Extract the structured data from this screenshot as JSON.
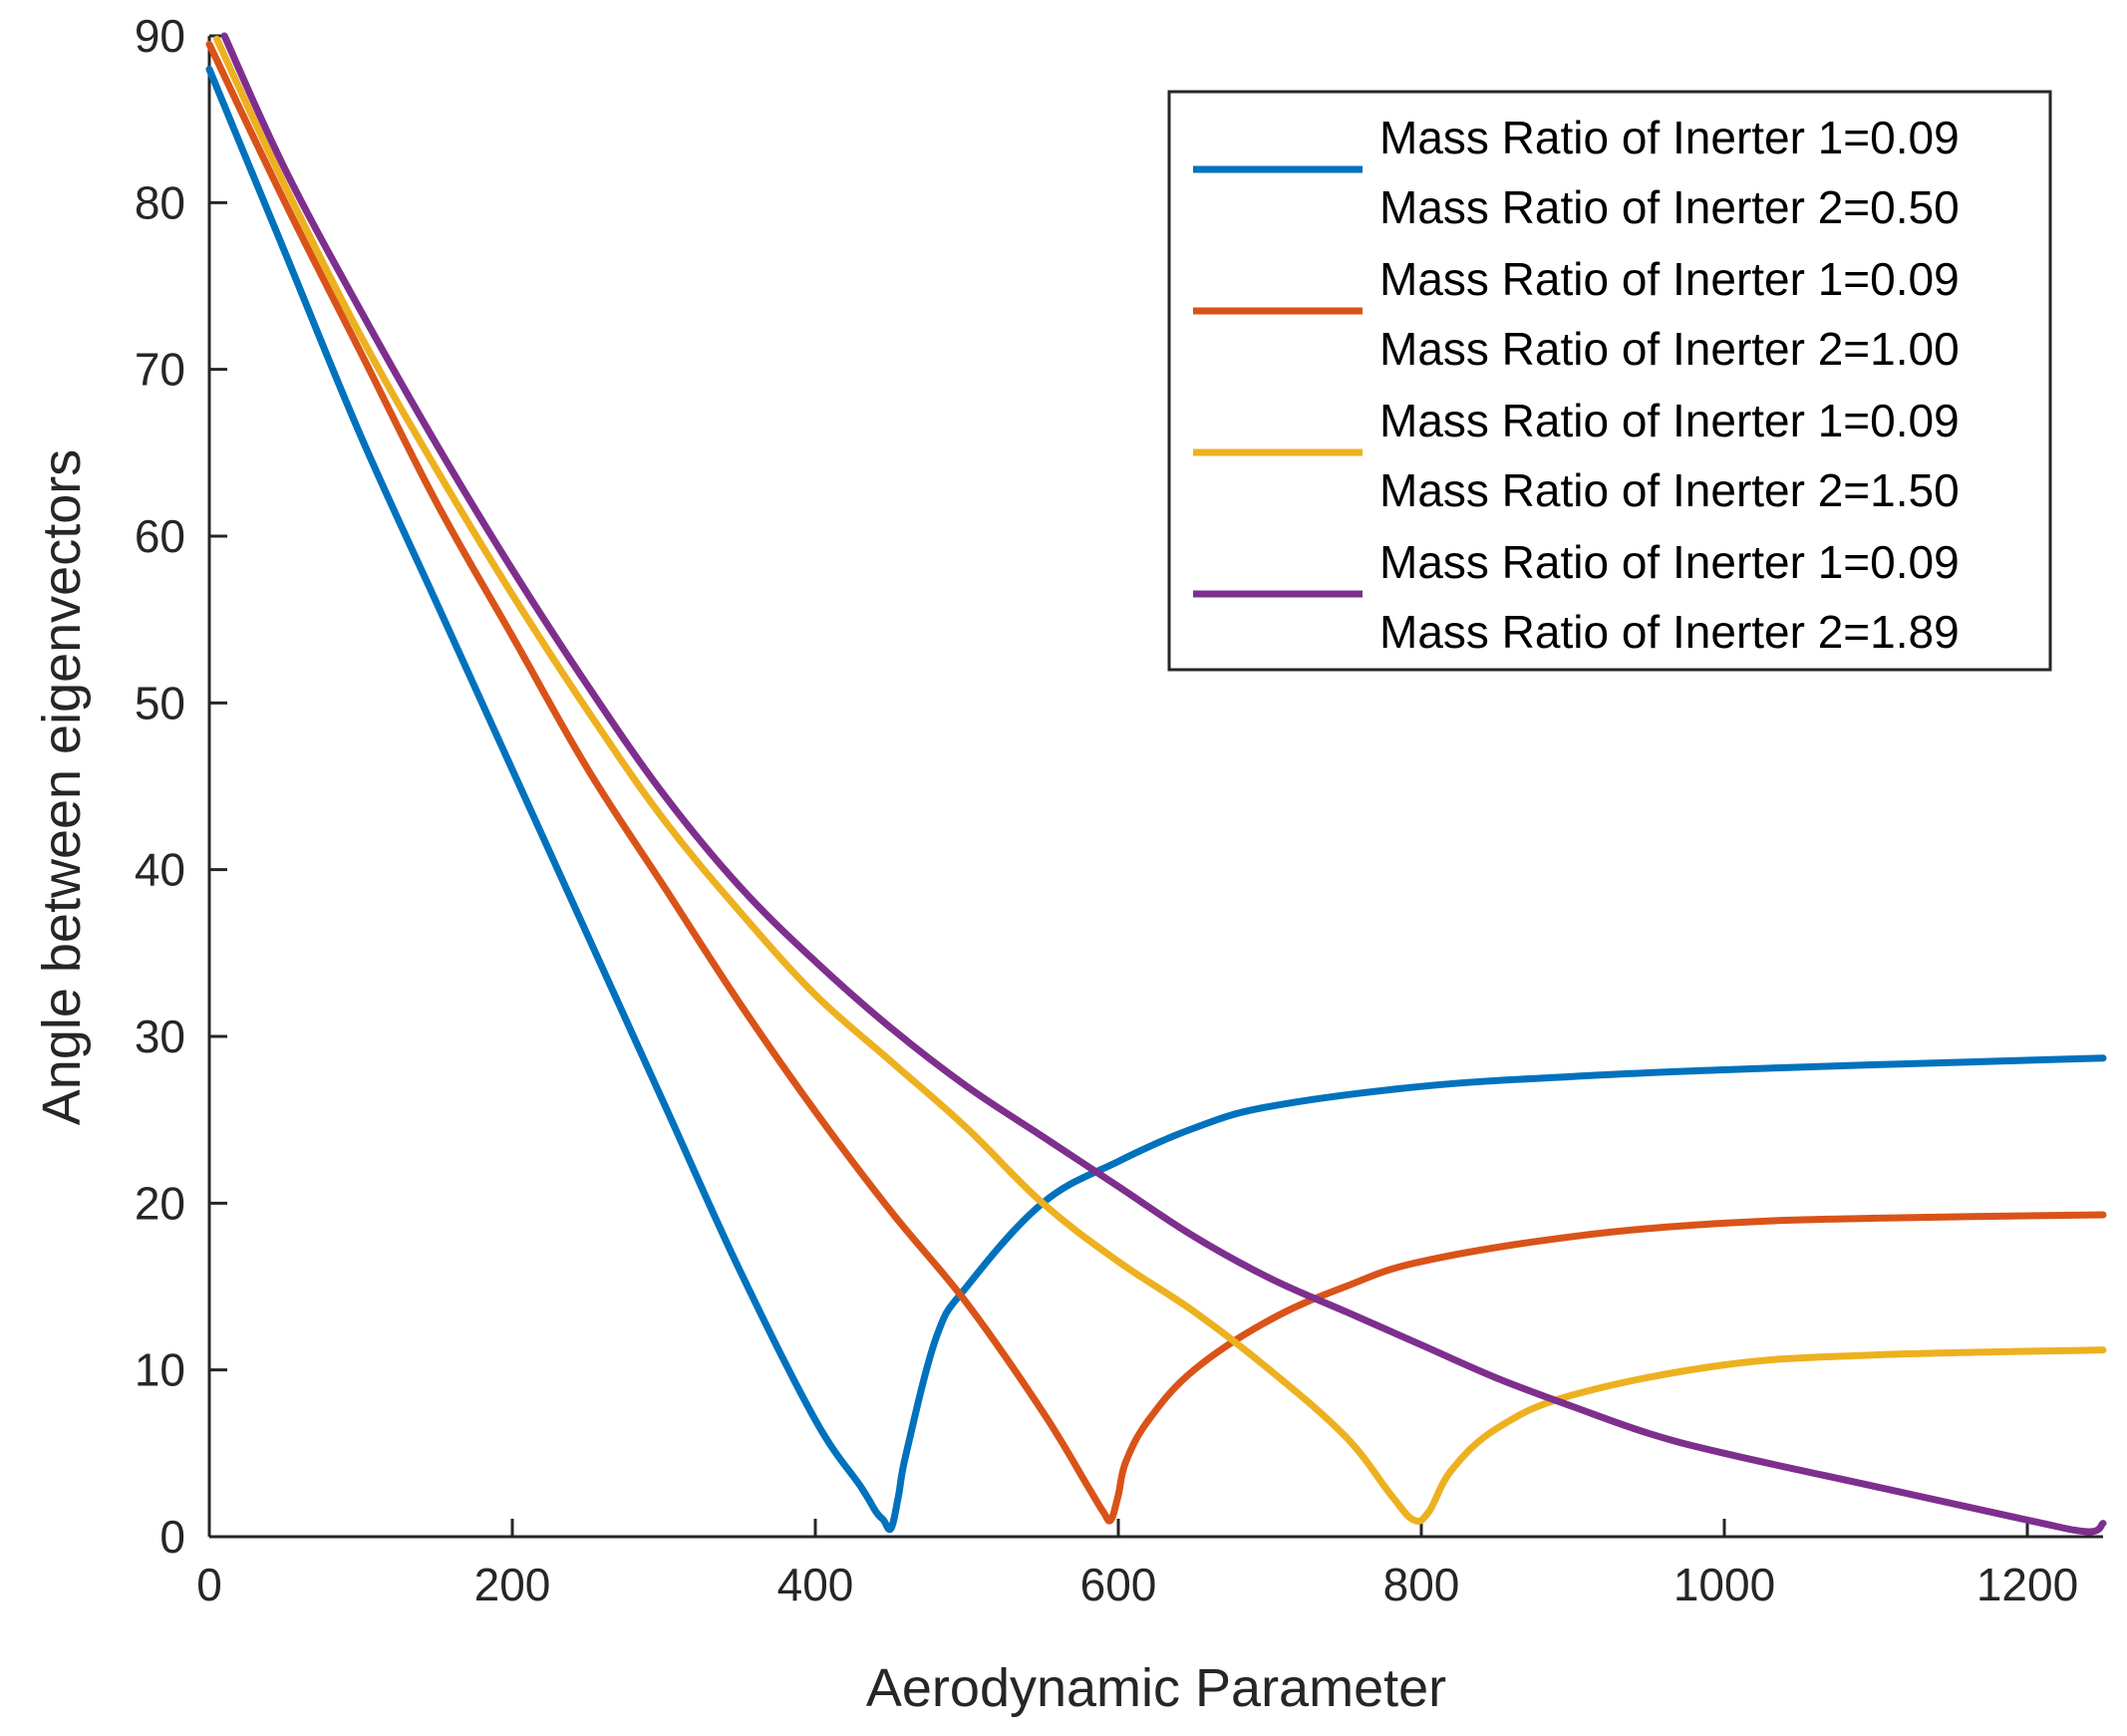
{
  "chart_data": {
    "type": "line",
    "title": "",
    "xlabel": "Aerodynamic Parameter",
    "ylabel": "Angle between eigenvectors",
    "xlim": [
      0,
      1250
    ],
    "ylim": [
      0,
      90
    ],
    "x_ticks": [
      0,
      200,
      400,
      600,
      800,
      1000,
      1200
    ],
    "y_ticks": [
      0,
      10,
      20,
      30,
      40,
      50,
      60,
      70,
      80,
      90
    ],
    "grid": false,
    "legend_position": "top-right",
    "series": [
      {
        "name": "Mass Ratio of Inerter 1=0.09 / Mass Ratio of Inerter 2=0.50",
        "legend_line1": "Mass Ratio of Inerter 1=0.09",
        "legend_line2": "Mass Ratio of Inerter 2=0.50",
        "color": "#0072BD",
        "x": [
          0,
          50,
          100,
          150,
          200,
          250,
          300,
          350,
          400,
          430,
          440,
          445,
          450,
          455,
          460,
          480,
          500,
          550,
          600,
          650,
          700,
          800,
          900,
          1000,
          1100,
          1250
        ],
        "y": [
          88,
          77,
          66,
          56,
          46,
          36,
          26,
          16,
          7,
          3,
          1.5,
          1,
          0.5,
          2.5,
          5,
          12,
          15,
          20,
          22.5,
          24.5,
          25.8,
          27,
          27.6,
          28,
          28.3,
          28.7
        ]
      },
      {
        "name": "Mass Ratio of Inerter 1=0.09 / Mass Ratio of Inerter 2=1.00",
        "legend_line1": "Mass Ratio of Inerter 1=0.09",
        "legend_line2": "Mass Ratio of Inerter 2=1.00",
        "color": "#D95319",
        "x": [
          0,
          50,
          100,
          150,
          200,
          250,
          300,
          350,
          400,
          450,
          500,
          550,
          580,
          590,
          595,
          600,
          605,
          620,
          650,
          700,
          750,
          800,
          900,
          1000,
          1100,
          1250
        ],
        "y": [
          89.5,
          80,
          71,
          62,
          54,
          46,
          39,
          32,
          25.5,
          19.5,
          14,
          7.5,
          3,
          1.5,
          1,
          2.5,
          4.5,
          7,
          10,
          13,
          15,
          16.5,
          18,
          18.8,
          19.1,
          19.3
        ]
      },
      {
        "name": "Mass Ratio of Inerter 1=0.09 / Mass Ratio of Inerter 2=1.50",
        "legend_line1": "Mass Ratio of Inerter 1=0.09",
        "legend_line2": "Mass Ratio of Inerter 2=1.50",
        "color": "#EDB120",
        "x": [
          5,
          50,
          100,
          150,
          200,
          250,
          300,
          350,
          400,
          450,
          500,
          550,
          600,
          650,
          700,
          750,
          780,
          795,
          805,
          820,
          850,
          900,
          1000,
          1100,
          1250
        ],
        "y": [
          89.8,
          81,
          72,
          64,
          56.5,
          49.5,
          43,
          37.5,
          32.5,
          28.5,
          24.5,
          20,
          16.5,
          13.5,
          10,
          6,
          2.5,
          1,
          1.5,
          4,
          6.5,
          8.5,
          10.3,
          10.9,
          11.2
        ]
      },
      {
        "name": "Mass Ratio of Inerter 1=0.09 / Mass Ratio of Inerter 2=1.89",
        "legend_line1": "Mass Ratio of Inerter 1=0.09",
        "legend_line2": "Mass Ratio of Inerter 2=1.89",
        "color": "#7E2F8E",
        "x": [
          10,
          50,
          100,
          150,
          200,
          250,
          300,
          350,
          400,
          450,
          500,
          550,
          600,
          650,
          700,
          750,
          800,
          850,
          900,
          950,
          1000,
          1100,
          1200,
          1240,
          1250
        ],
        "y": [
          90,
          82,
          73.5,
          65.5,
          58,
          51,
          44.5,
          39,
          34.5,
          30.5,
          27,
          24,
          21,
          18,
          15.5,
          13.5,
          11.5,
          9.5,
          7.8,
          6.2,
          5,
          3,
          1,
          0.3,
          0.8
        ]
      }
    ]
  }
}
